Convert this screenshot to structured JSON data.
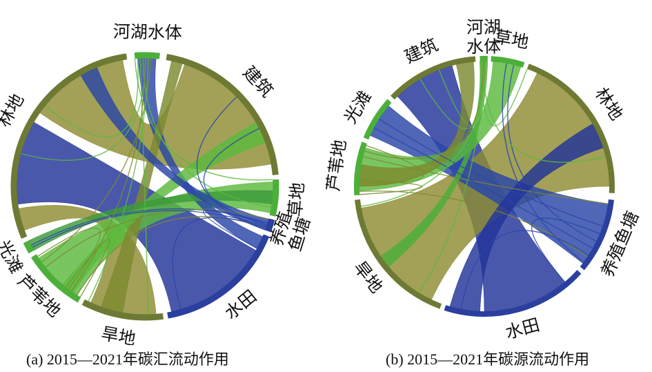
{
  "panels": [
    {
      "id": "a",
      "caption": "(a) 2015—2021年碳汇流动作用",
      "categories": [
        {
          "key": "hehu",
          "label": "河湖水体",
          "color": "#4caf3a",
          "start": 355.5,
          "end": 6.5,
          "lines": [
            "河湖水体"
          ]
        },
        {
          "key": "jianzhu",
          "label": "建筑",
          "color": "#6e7a34",
          "start": 9.5,
          "end": 85,
          "lines": [
            "建筑"
          ]
        },
        {
          "key": "caodi",
          "label": "草地",
          "color": "#4caf3a",
          "start": 87,
          "end": 103,
          "lines": [
            "草地"
          ]
        },
        {
          "key": "yangzhi",
          "label": "养殖鱼塘",
          "color": "#2b3f9e",
          "start": 104.5,
          "end": 110,
          "lines": [
            "养殖",
            "鱼塘"
          ]
        },
        {
          "key": "shuitian",
          "label": "水田",
          "color": "#2b3f9e",
          "start": 112,
          "end": 170,
          "lines": [
            "水田"
          ]
        },
        {
          "key": "handi",
          "label": "旱地",
          "color": "#6e7a34",
          "start": 172,
          "end": 208,
          "lines": [
            "旱地"
          ]
        },
        {
          "key": "luwei",
          "label": "芦苇地",
          "color": "#4caf3a",
          "start": 210,
          "end": 238,
          "lines": [
            "芦苇地"
          ]
        },
        {
          "key": "guangtan",
          "label": "光滩",
          "color": "#4caf3a",
          "start": 240,
          "end": 245,
          "lines": [
            "光滩"
          ]
        },
        {
          "key": "lindi",
          "label": "林地",
          "color": "#6e7a34",
          "start": 247,
          "end": 352,
          "lines": [
            "林地"
          ]
        }
      ],
      "flows": [
        {
          "from": "lindi",
          "fs": 262,
          "fe": 300,
          "to": "shuitian",
          "ts": 120,
          "te": 168,
          "color": "#22339a"
        },
        {
          "from": "lindi",
          "fs": 305,
          "fe": 350,
          "to": "jianzhu",
          "ts": 18,
          "te": 80,
          "color": "#8e8c32"
        },
        {
          "from": "lindi",
          "fs": 250,
          "fe": 260,
          "to": "handi",
          "ts": 175,
          "te": 205,
          "color": "#8e8c32"
        },
        {
          "from": "caodi",
          "fs": 88,
          "fe": 102,
          "to": "luwei",
          "ts": 212,
          "te": 236,
          "color": "#5cb93e"
        },
        {
          "from": "hehu",
          "fs": 357,
          "fe": 5,
          "to": "shuitian",
          "ts": 113,
          "te": 119,
          "color": "#2a46a8"
        },
        {
          "from": "jianzhu",
          "fs": 12,
          "fe": 17,
          "to": "handi",
          "ts": 190,
          "te": 200,
          "color": "#7c8a30"
        },
        {
          "from": "luwei",
          "fs": 214,
          "fe": 220,
          "to": "jianzhu",
          "ts": 60,
          "te": 70,
          "color": "#5cb93e"
        },
        {
          "from": "guangtan",
          "fs": 240,
          "fe": 245,
          "to": "caodi",
          "ts": 92,
          "te": 98,
          "color": "#3c9a3a"
        },
        {
          "from": "yangzhi",
          "fs": 105,
          "fe": 110,
          "to": "lindi",
          "ts": 330,
          "te": 338,
          "color": "#2a46a8"
        }
      ]
    },
    {
      "id": "b",
      "caption": "(b) 2015—2021年碳源流动作用",
      "categories": [
        {
          "key": "hehu",
          "label": "河湖水体",
          "color": "#4caf3a",
          "start": 358,
          "end": 1.5,
          "lines": [
            "河湖",
            "水体"
          ]
        },
        {
          "key": "caodi",
          "label": "草地",
          "color": "#4caf3a",
          "start": 3,
          "end": 18,
          "lines": [
            "草地"
          ]
        },
        {
          "key": "lindi",
          "label": "林地",
          "color": "#6e7a34",
          "start": 20,
          "end": 93,
          "lines": [
            "林地"
          ]
        },
        {
          "key": "yangzhi",
          "label": "养殖鱼塘",
          "color": "#2b3f9e",
          "start": 96,
          "end": 130,
          "lines": [
            "养殖鱼塘"
          ]
        },
        {
          "key": "shuitian",
          "label": "水田",
          "color": "#2b3f9e",
          "start": 132,
          "end": 198,
          "lines": [
            "水田"
          ]
        },
        {
          "key": "handi",
          "label": "旱地",
          "color": "#6e7a34",
          "start": 200,
          "end": 264,
          "lines": [
            "旱地"
          ]
        },
        {
          "key": "luwei",
          "label": "芦苇地",
          "color": "#4caf3a",
          "start": 266,
          "end": 290,
          "lines": [
            "芦苇地"
          ]
        },
        {
          "key": "guangtan",
          "label": "光滩",
          "color": "#4caf3a",
          "start": 292,
          "end": 312,
          "lines": [
            "光滩"
          ]
        },
        {
          "key": "jianzhu",
          "label": "建筑",
          "color": "#6e7a34",
          "start": 314,
          "end": 356,
          "lines": [
            "建筑"
          ]
        }
      ],
      "flows": [
        {
          "from": "jianzhu",
          "fs": 316,
          "fe": 345,
          "to": "shuitian",
          "ts": 140,
          "te": 180,
          "color": "#22339a"
        },
        {
          "from": "lindi",
          "fs": 25,
          "fe": 90,
          "to": "handi",
          "ts": 205,
          "te": 260,
          "color": "#8e8c32"
        },
        {
          "from": "yangzhi",
          "fs": 98,
          "fe": 128,
          "to": "guangtan",
          "ts": 294,
          "te": 310,
          "color": "#2a46a8"
        },
        {
          "from": "caodi",
          "fs": 4,
          "fe": 17,
          "to": "luwei",
          "ts": 268,
          "te": 288,
          "color": "#5cb93e"
        },
        {
          "from": "shuitian",
          "fs": 182,
          "fe": 196,
          "to": "lindi",
          "ts": 60,
          "te": 72,
          "color": "#22339a"
        },
        {
          "from": "hehu",
          "fs": 358,
          "fe": 1.5,
          "to": "handi",
          "ts": 230,
          "te": 236,
          "color": "#4caf3a"
        },
        {
          "from": "jianzhu",
          "fs": 347,
          "fe": 355,
          "to": "luwei",
          "ts": 270,
          "te": 280,
          "color": "#7c8a30"
        }
      ]
    }
  ],
  "colors": {
    "olive": "#6e7a34",
    "green": "#4caf3a",
    "blue": "#2b3f9e"
  }
}
